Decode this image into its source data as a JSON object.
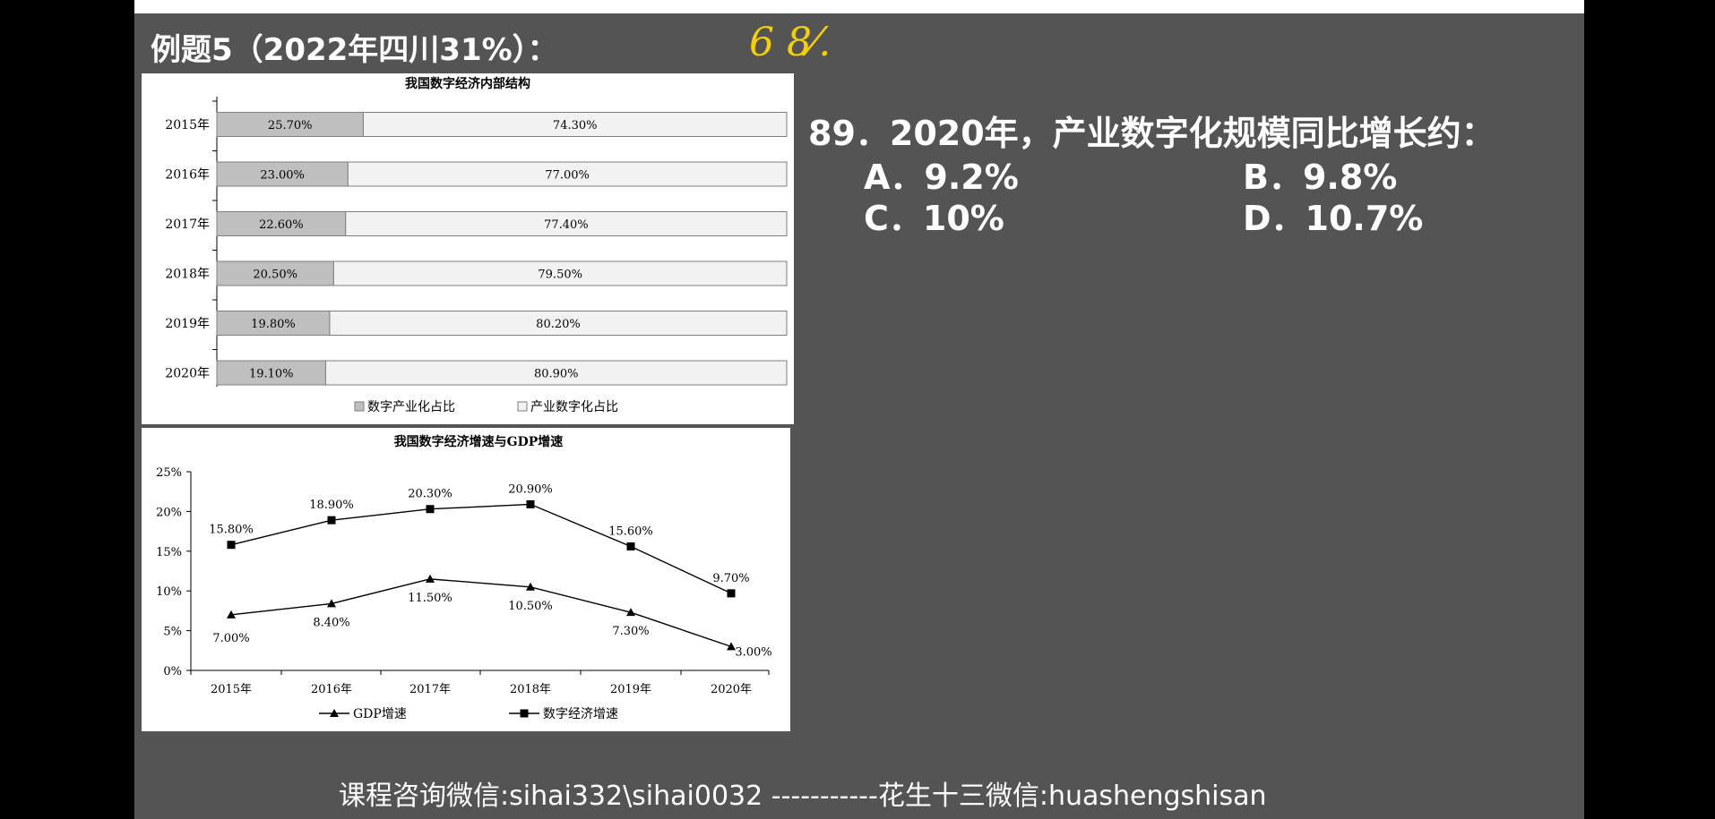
{
  "heading": "例题5（2022年四川31%）：",
  "handwritten_note": "6 8⁄.",
  "question": {
    "text": "89．2020年，产业数字化规模同比增长约：",
    "options": [
      {
        "label": "A．9.2%"
      },
      {
        "label": "B．9.8%"
      },
      {
        "label": "C．10%"
      },
      {
        "label": "D．10.7%"
      }
    ]
  },
  "footer": "课程咨询微信:sihai332\\sihai0032 -----------花生十三微信:huashengshisan",
  "chart_data": [
    {
      "type": "bar",
      "stacked": true,
      "orientation": "horizontal",
      "title": "我国数字经济内部结构",
      "categories": [
        "2015年",
        "2016年",
        "2017年",
        "2018年",
        "2019年",
        "2020年"
      ],
      "series": [
        {
          "name": "数字产业化占比",
          "values": [
            25.7,
            23.0,
            22.6,
            20.5,
            19.8,
            19.1
          ],
          "labels": [
            "25.70%",
            "23.00%",
            "22.60%",
            "20.50%",
            "19.80%",
            "19.10%"
          ],
          "color": "#bfbfbf"
        },
        {
          "name": "产业数字化占比",
          "values": [
            74.3,
            77.0,
            77.4,
            79.5,
            80.2,
            80.9
          ],
          "labels": [
            "74.30%",
            "77.00%",
            "77.40%",
            "79.50%",
            "80.20%",
            "80.90%"
          ],
          "color": "#f2f2f2"
        }
      ],
      "xlim": [
        0,
        100
      ],
      "legend_position": "bottom"
    },
    {
      "type": "line",
      "title": "我国数字经济增速与GDP增速",
      "categories": [
        "2015年",
        "2016年",
        "2017年",
        "2018年",
        "2019年",
        "2020年"
      ],
      "y_ticks": [
        "25%",
        "20%",
        "15%",
        "10%",
        "5%",
        "0%"
      ],
      "ylim": [
        0,
        25
      ],
      "series": [
        {
          "name": "GDP增速",
          "marker": "triangle",
          "values": [
            7.0,
            8.4,
            11.5,
            10.5,
            7.3,
            3.0
          ],
          "labels": [
            "7.00%",
            "8.40%",
            "11.50%",
            "10.50%",
            "7.30%",
            "3.00%"
          ]
        },
        {
          "name": "数字经济增速",
          "marker": "square",
          "values": [
            15.8,
            18.9,
            20.3,
            20.9,
            15.6,
            9.7
          ],
          "labels": [
            "15.80%",
            "18.90%",
            "20.30%",
            "20.90%",
            "15.60%",
            "9.70%"
          ]
        }
      ],
      "legend_position": "bottom"
    }
  ]
}
